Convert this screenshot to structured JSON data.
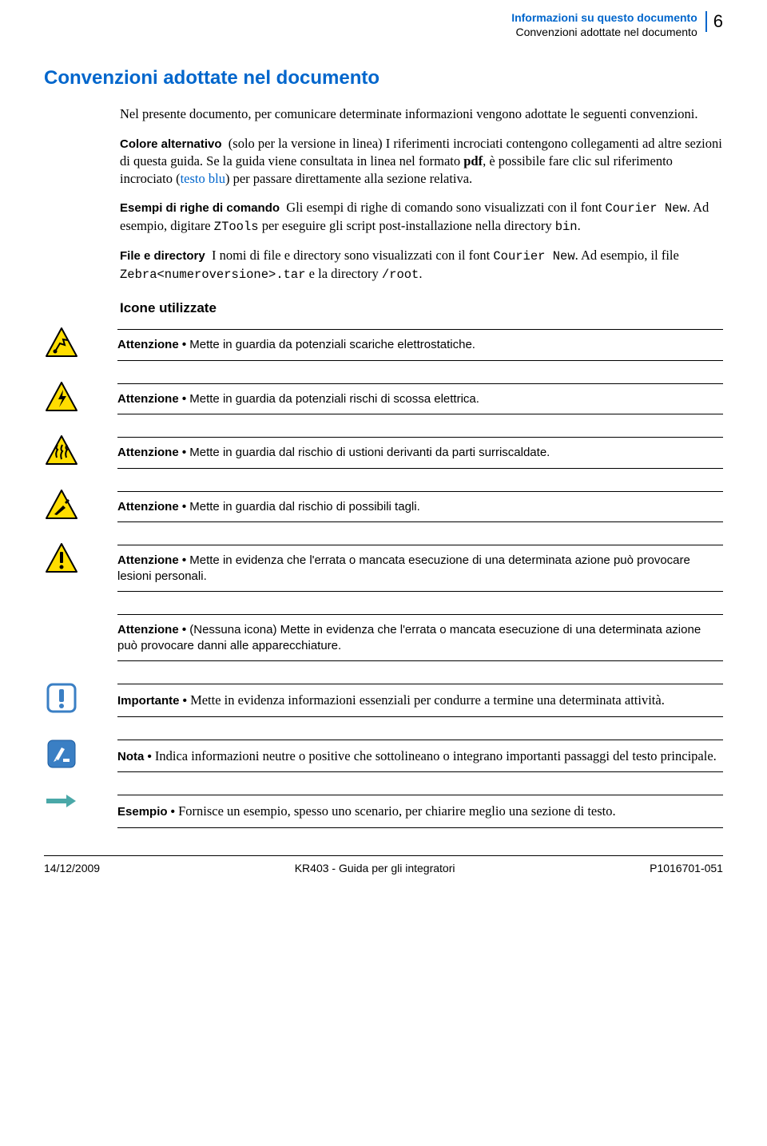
{
  "header": {
    "line1": "Informazioni su questo documento",
    "line2": "Convenzioni adottate nel documento",
    "pageno": "6"
  },
  "colors": {
    "accent": "#0066cc",
    "warning_yellow": "#ffdd00",
    "warning_border": "#000000",
    "blue_icon_fill": "#3a7fc4",
    "blue_icon_border": "#1a5a9e",
    "arrow_teal": "#4aa8a8"
  },
  "title": "Convenzioni adottate nel documento",
  "intro": "Nel presente documento, per comunicare determinate informazioni vengono adottate le seguenti convenzioni.",
  "colore": {
    "label": "Colore alternativo",
    "text_a": "(solo per la versione in linea) I riferimenti incrociati contengono collegamenti ad altre sezioni di questa guida. Se la guida viene consultata in linea nel formato ",
    "pdf": "pdf",
    "text_b": ", è possibile fare clic sul riferimento incrociato (",
    "testo_blu": "testo blu",
    "text_c": ") per passare direttamente alla sezione relativa."
  },
  "esempi": {
    "label": "Esempi di righe di comando",
    "text_a": "Gli esempi di righe di comando sono visualizzati con il font ",
    "courier": "Courier New",
    "text_b": ". Ad esempio, digitare ",
    "ztools": "ZTools",
    "text_c": " per eseguire gli script post-installazione nella directory ",
    "bin": "bin",
    "text_d": "."
  },
  "file": {
    "label": "File e directory",
    "text_a": "I nomi di file e directory sono visualizzati con il font ",
    "courier": "Courier New",
    "text_b": ". Ad esempio, il file ",
    "zebra": "Zebra<numeroversione>.tar",
    "text_c": " e la directory ",
    "root": "/root",
    "text_d": "."
  },
  "icone_title": "Icone utilizzate",
  "entries": [
    {
      "icon": "esd",
      "label": "Attenzione •",
      "text": " Mette in guardia da potenziali scariche elettrostatiche.",
      "serif": false
    },
    {
      "icon": "shock",
      "label": "Attenzione •",
      "text": " Mette in guardia da potenziali rischi di scossa elettrica.",
      "serif": false
    },
    {
      "icon": "hot",
      "label": "Attenzione •",
      "text": " Mette in guardia dal rischio di ustioni derivanti da parti surriscaldate.",
      "serif": false
    },
    {
      "icon": "cut",
      "label": "Attenzione •",
      "text": " Mette in guardia dal rischio di possibili tagli.",
      "serif": false
    },
    {
      "icon": "exclaim",
      "label": "Attenzione •",
      "text": " Mette in evidenza che l'errata o mancata esecuzione di una determinata azione può provocare lesioni personali.",
      "serif": false
    },
    {
      "icon": "",
      "label": "Attenzione •",
      "text": " (Nessuna icona) Mette in evidenza che l'errata o mancata esecuzione di una determinata azione può provocare danni alle apparecchiature.",
      "serif": false
    },
    {
      "icon": "important",
      "label": "Importante •",
      "text": " Mette in evidenza informazioni essenziali per condurre a termine una determinata attività.",
      "serif": true
    },
    {
      "icon": "note",
      "label": "Nota •",
      "text": " Indica informazioni neutre o positive che sottolineano o integrano importanti passaggi del testo principale.",
      "serif": true
    },
    {
      "icon": "arrow",
      "label": "Esempio •",
      "text": " Fornisce un esempio, spesso uno scenario, per chiarire meglio una sezione di testo.",
      "serif": true
    }
  ],
  "footer": {
    "left": "14/12/2009",
    "center": "KR403 - Guida per gli integratori",
    "right": "P1016701-051"
  }
}
